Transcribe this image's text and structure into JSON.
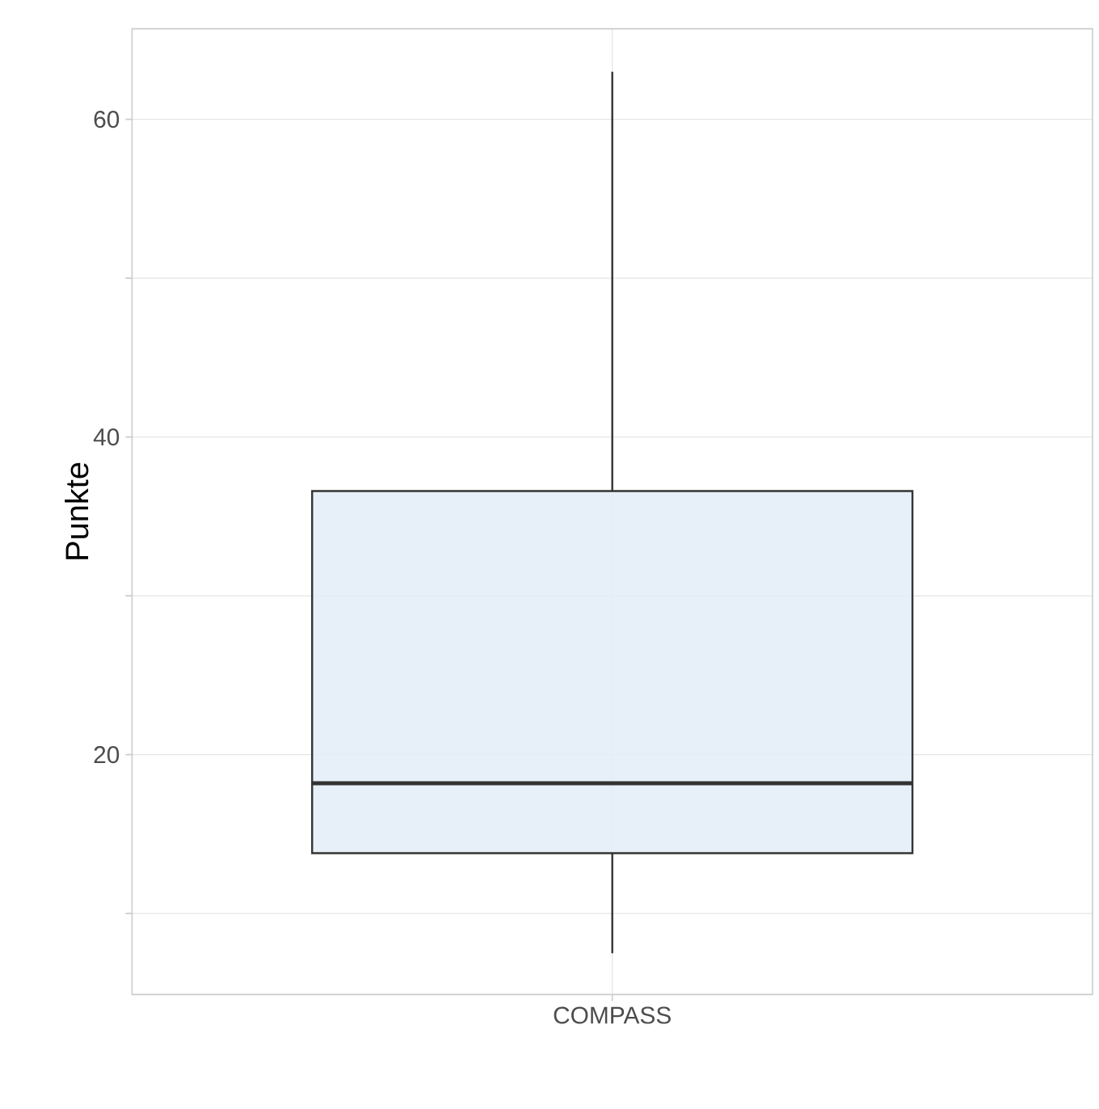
{
  "chart_data": {
    "type": "box",
    "ylabel": "Punkte",
    "categories": [
      "COMPASS"
    ],
    "boxes": [
      {
        "low": 7.5,
        "q1": 13.8,
        "median": 18.2,
        "q3": 36.6,
        "high": 63.0
      }
    ],
    "color": "#e3edf7",
    "ylim": [
      4.9,
      65.7
    ],
    "yticks": [
      {
        "value": 10,
        "label": null
      },
      20,
      {
        "value": 30,
        "label": null
      },
      40,
      {
        "value": 50,
        "label": null
      },
      60
    ],
    "grid": true
  }
}
